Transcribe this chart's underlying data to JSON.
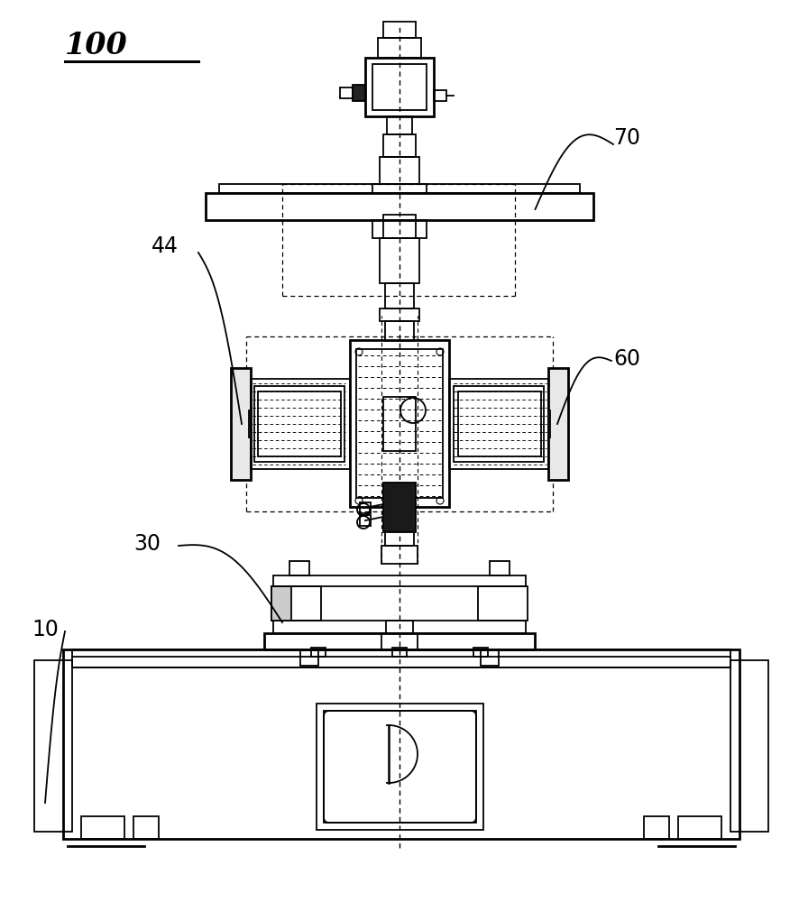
{
  "label_100": "100",
  "label_70": "70",
  "label_44": "44",
  "label_60": "60",
  "label_30": "30",
  "label_10": "10",
  "bg_color": "#ffffff",
  "fig_width": 8.87,
  "fig_height": 10.0
}
